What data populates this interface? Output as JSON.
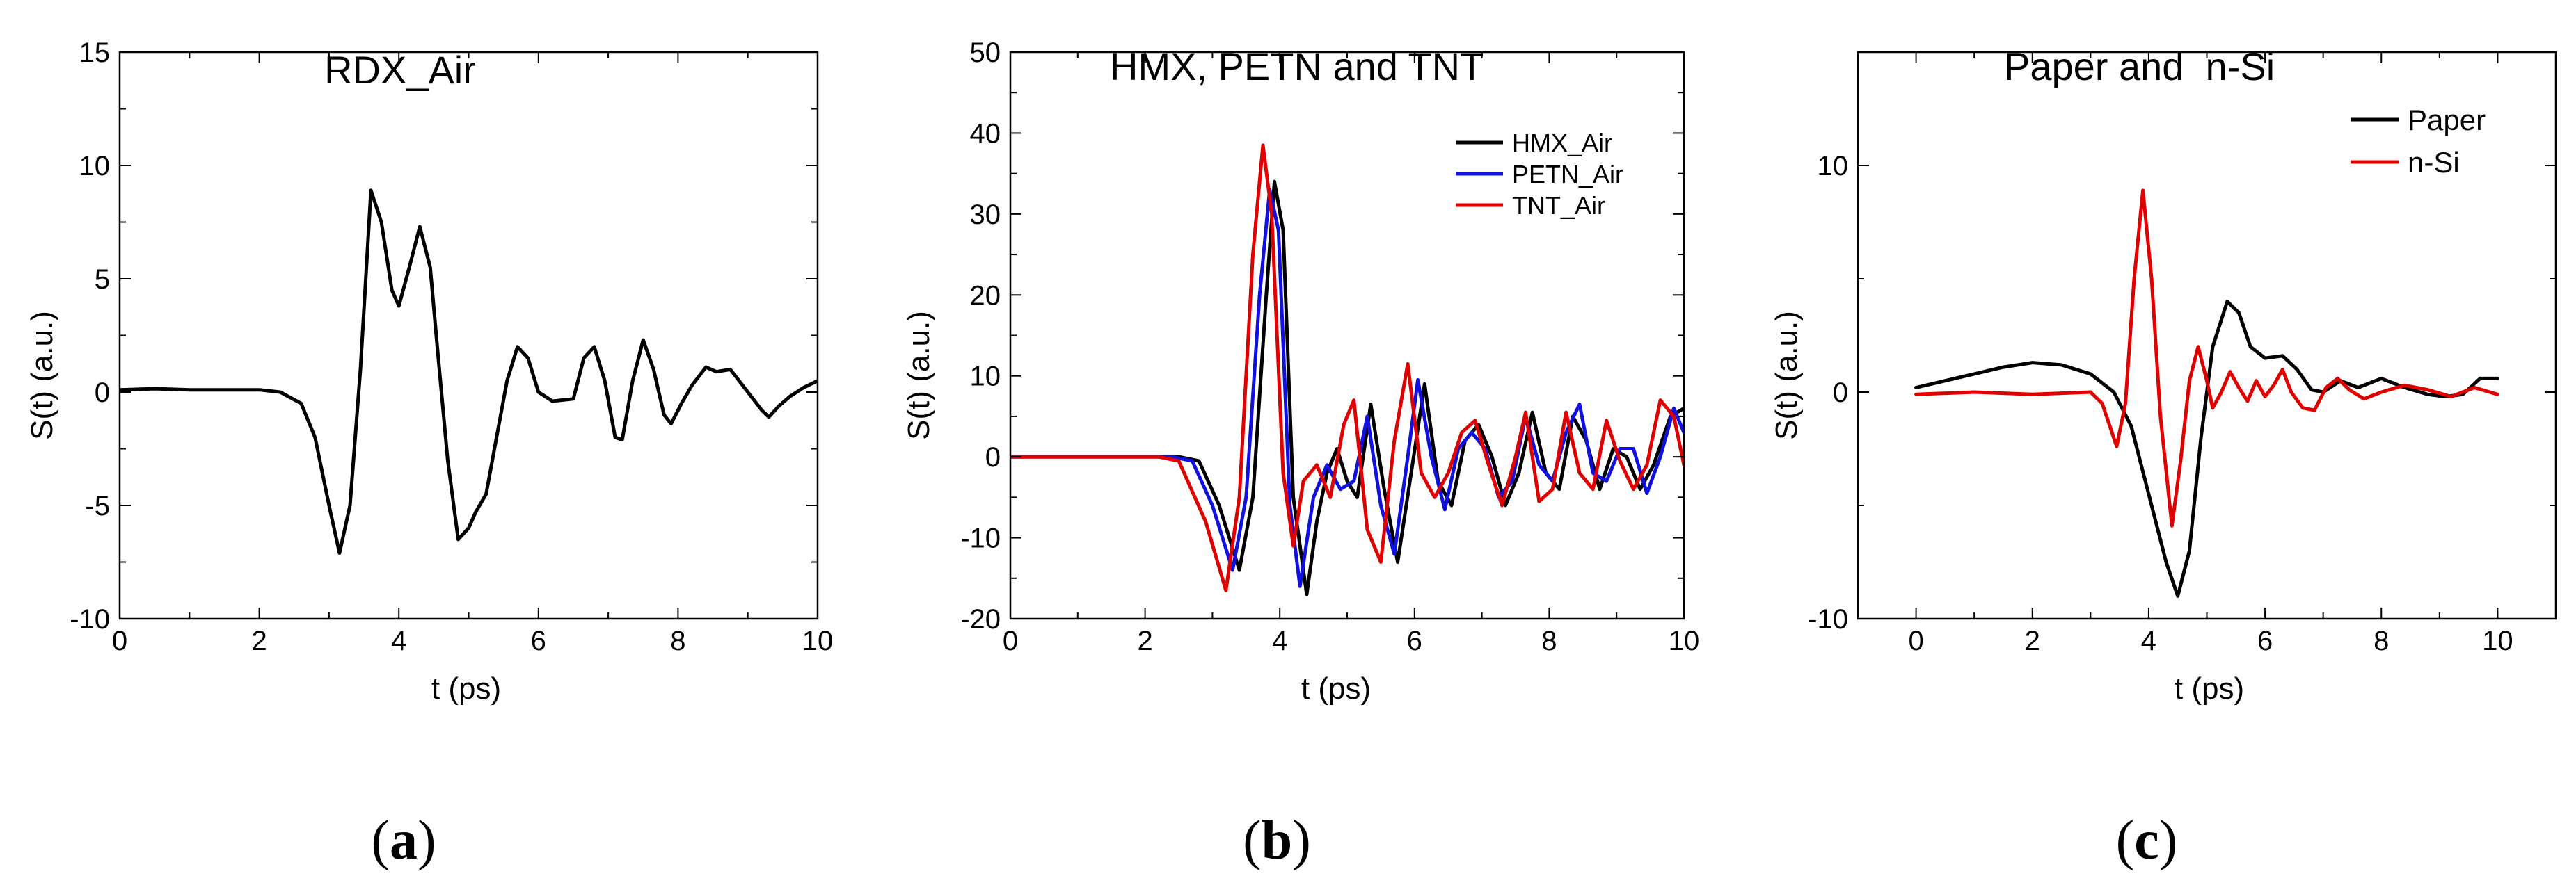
{
  "chart_data": [
    {
      "type": "line",
      "panel_label": {
        "open": "(",
        "letter": "a",
        "close": ")"
      },
      "title": "RDX_Air",
      "xlabel": "t (ps)",
      "ylabel": "S(t) (a.u.)",
      "xlim": [
        0,
        10
      ],
      "ylim": [
        -10,
        15
      ],
      "xticks": [
        0,
        2,
        4,
        6,
        8,
        10
      ],
      "xtick_labels": [
        "0",
        "2",
        "4",
        "6",
        "8",
        "10"
      ],
      "yticks": [
        -10,
        -5,
        0,
        5,
        10,
        15
      ],
      "ytick_labels": [
        "-10",
        "-5",
        "0",
        "5",
        "10",
        "15"
      ],
      "series": [
        {
          "name": "RDX_Air",
          "color": "#000000",
          "points": [
            [
              0,
              0.1
            ],
            [
              0.5,
              0.15
            ],
            [
              1.0,
              0.1
            ],
            [
              1.5,
              0.1
            ],
            [
              2.0,
              0.1
            ],
            [
              2.3,
              0.0
            ],
            [
              2.6,
              -0.5
            ],
            [
              2.8,
              -2.0
            ],
            [
              3.0,
              -5.0
            ],
            [
              3.15,
              -7.1
            ],
            [
              3.3,
              -5.0
            ],
            [
              3.45,
              1.0
            ],
            [
              3.6,
              8.9
            ],
            [
              3.75,
              7.5
            ],
            [
              3.9,
              4.5
            ],
            [
              4.0,
              3.8
            ],
            [
              4.15,
              5.5
            ],
            [
              4.3,
              7.3
            ],
            [
              4.45,
              5.5
            ],
            [
              4.55,
              2.0
            ],
            [
              4.7,
              -3.0
            ],
            [
              4.85,
              -6.5
            ],
            [
              5.0,
              -6.0
            ],
            [
              5.1,
              -5.3
            ],
            [
              5.25,
              -4.5
            ],
            [
              5.4,
              -2.0
            ],
            [
              5.55,
              0.5
            ],
            [
              5.7,
              2.0
            ],
            [
              5.85,
              1.5
            ],
            [
              6.0,
              0.0
            ],
            [
              6.2,
              -0.4
            ],
            [
              6.5,
              -0.3
            ],
            [
              6.65,
              1.5
            ],
            [
              6.8,
              2.0
            ],
            [
              6.95,
              0.5
            ],
            [
              7.1,
              -2.0
            ],
            [
              7.2,
              -2.1
            ],
            [
              7.35,
              0.5
            ],
            [
              7.5,
              2.3
            ],
            [
              7.65,
              1.0
            ],
            [
              7.8,
              -1.0
            ],
            [
              7.9,
              -1.4
            ],
            [
              8.05,
              -0.5
            ],
            [
              8.2,
              0.3
            ],
            [
              8.4,
              1.1
            ],
            [
              8.55,
              0.9
            ],
            [
              8.75,
              1.0
            ],
            [
              9.0,
              0.0
            ],
            [
              9.2,
              -0.8
            ],
            [
              9.3,
              -1.1
            ],
            [
              9.45,
              -0.6
            ],
            [
              9.6,
              -0.2
            ],
            [
              9.8,
              0.2
            ],
            [
              10.0,
              0.5
            ]
          ]
        }
      ]
    },
    {
      "type": "line",
      "panel_label": {
        "open": "(",
        "letter": "b",
        "close": ")"
      },
      "title": "HMX, PETN and TNT",
      "xlabel": "t (ps)",
      "ylabel": "S(t) (a.u.)",
      "xlim": [
        0,
        10
      ],
      "ylim": [
        -20,
        50
      ],
      "xticks": [
        0,
        2,
        4,
        6,
        8,
        10
      ],
      "xtick_labels": [
        "0",
        "2",
        "4",
        "6",
        "8",
        "10"
      ],
      "yticks": [
        -20,
        -10,
        0,
        10,
        20,
        30,
        40,
        50
      ],
      "ytick_labels": [
        "-20",
        "-10",
        "0",
        "10",
        "20",
        "30",
        "40",
        "50"
      ],
      "legend": {
        "position": "top-right",
        "entries": [
          "HMX_Air",
          "PETN_Air",
          "TNT_Air"
        ]
      },
      "series": [
        {
          "name": "HMX_Air",
          "color": "#000000",
          "points": [
            [
              0,
              0
            ],
            [
              2.5,
              0
            ],
            [
              2.8,
              -0.5
            ],
            [
              3.1,
              -6.0
            ],
            [
              3.4,
              -14.0
            ],
            [
              3.6,
              -5.0
            ],
            [
              3.8,
              20.0
            ],
            [
              3.92,
              34.0
            ],
            [
              4.05,
              28.0
            ],
            [
              4.2,
              -5.0
            ],
            [
              4.4,
              -17.0
            ],
            [
              4.55,
              -8.0
            ],
            [
              4.7,
              -2.0
            ],
            [
              4.85,
              1.0
            ],
            [
              5.0,
              -3.0
            ],
            [
              5.15,
              -5.0
            ],
            [
              5.35,
              6.5
            ],
            [
              5.55,
              -4.0
            ],
            [
              5.75,
              -13.0
            ],
            [
              5.95,
              -2.0
            ],
            [
              6.15,
              9.0
            ],
            [
              6.35,
              -3.0
            ],
            [
              6.55,
              -6.0
            ],
            [
              6.75,
              2.0
            ],
            [
              6.95,
              4.0
            ],
            [
              7.15,
              0.0
            ],
            [
              7.35,
              -6.0
            ],
            [
              7.55,
              -2.0
            ],
            [
              7.75,
              5.5
            ],
            [
              7.95,
              -2.0
            ],
            [
              8.15,
              -4.0
            ],
            [
              8.35,
              5.0
            ],
            [
              8.55,
              2.0
            ],
            [
              8.75,
              -4.0
            ],
            [
              8.95,
              1.0
            ],
            [
              9.15,
              0.0
            ],
            [
              9.35,
              -4.0
            ],
            [
              9.55,
              -1.0
            ],
            [
              9.8,
              5.0
            ],
            [
              10.0,
              6.0
            ]
          ]
        },
        {
          "name": "PETN_Air",
          "color": "#1010e0",
          "points": [
            [
              0,
              0
            ],
            [
              2.4,
              0
            ],
            [
              2.7,
              -0.5
            ],
            [
              3.0,
              -6.0
            ],
            [
              3.3,
              -14.0
            ],
            [
              3.5,
              -5.0
            ],
            [
              3.7,
              20.0
            ],
            [
              3.85,
              33.0
            ],
            [
              3.98,
              28.0
            ],
            [
              4.15,
              -6.0
            ],
            [
              4.3,
              -16.0
            ],
            [
              4.5,
              -5.0
            ],
            [
              4.7,
              -1.0
            ],
            [
              4.9,
              -4.0
            ],
            [
              5.1,
              -3.0
            ],
            [
              5.3,
              5.0
            ],
            [
              5.5,
              -6.0
            ],
            [
              5.7,
              -12.0
            ],
            [
              5.9,
              0.0
            ],
            [
              6.05,
              9.5
            ],
            [
              6.25,
              0.0
            ],
            [
              6.45,
              -6.5
            ],
            [
              6.65,
              1.0
            ],
            [
              6.85,
              3.0
            ],
            [
              7.05,
              1.0
            ],
            [
              7.25,
              -5.0
            ],
            [
              7.45,
              -3.0
            ],
            [
              7.65,
              5.0
            ],
            [
              7.85,
              -1.0
            ],
            [
              8.05,
              -3.0
            ],
            [
              8.25,
              3.0
            ],
            [
              8.45,
              6.5
            ],
            [
              8.65,
              -2.0
            ],
            [
              8.85,
              -3.0
            ],
            [
              9.05,
              1.0
            ],
            [
              9.25,
              1.0
            ],
            [
              9.45,
              -4.5
            ],
            [
              9.65,
              0.0
            ],
            [
              9.85,
              6.0
            ],
            [
              10.0,
              3.0
            ]
          ]
        },
        {
          "name": "TNT_Air",
          "color": "#e00000",
          "points": [
            [
              0,
              0
            ],
            [
              2.2,
              0
            ],
            [
              2.5,
              -0.5
            ],
            [
              2.9,
              -8.0
            ],
            [
              3.2,
              -16.5
            ],
            [
              3.4,
              -5.0
            ],
            [
              3.6,
              25.0
            ],
            [
              3.75,
              38.5
            ],
            [
              3.88,
              30.0
            ],
            [
              4.05,
              -2.0
            ],
            [
              4.2,
              -11.0
            ],
            [
              4.35,
              -3.0
            ],
            [
              4.55,
              -1.0
            ],
            [
              4.75,
              -5.0
            ],
            [
              4.95,
              4.0
            ],
            [
              5.1,
              7.0
            ],
            [
              5.3,
              -9.0
            ],
            [
              5.5,
              -13.0
            ],
            [
              5.7,
              2.0
            ],
            [
              5.9,
              11.5
            ],
            [
              6.1,
              -2.0
            ],
            [
              6.3,
              -5.0
            ],
            [
              6.5,
              -2.0
            ],
            [
              6.7,
              3.0
            ],
            [
              6.9,
              4.5
            ],
            [
              7.1,
              -1.0
            ],
            [
              7.3,
              -6.0
            ],
            [
              7.5,
              0.0
            ],
            [
              7.65,
              5.5
            ],
            [
              7.85,
              -5.5
            ],
            [
              8.05,
              -4.0
            ],
            [
              8.25,
              5.5
            ],
            [
              8.45,
              -2.0
            ],
            [
              8.65,
              -4.0
            ],
            [
              8.85,
              4.5
            ],
            [
              9.05,
              -0.5
            ],
            [
              9.25,
              -4.0
            ],
            [
              9.45,
              -1.0
            ],
            [
              9.65,
              7.0
            ],
            [
              9.85,
              5.0
            ],
            [
              10.0,
              -1.0
            ]
          ]
        }
      ]
    },
    {
      "type": "line",
      "panel_label": {
        "open": "(",
        "letter": "c",
        "close": ")"
      },
      "title": "Paper and  n-Si",
      "xlabel": "t (ps)",
      "ylabel": "S(t) (a.u.)",
      "xlim": [
        -1,
        11
      ],
      "ylim": [
        -10,
        15
      ],
      "xticks": [
        0,
        2,
        4,
        6,
        8,
        10
      ],
      "xtick_labels": [
        "0",
        "2",
        "4",
        "6",
        "8",
        "10"
      ],
      "yticks": [
        -10,
        0,
        10
      ],
      "ytick_labels": [
        "-10",
        "0",
        "10"
      ],
      "legend": {
        "position": "top-right",
        "entries": [
          "Paper",
          "n-Si"
        ]
      },
      "series": [
        {
          "name": "Paper",
          "color": "#000000",
          "points": [
            [
              0,
              0.2
            ],
            [
              0.5,
              0.5
            ],
            [
              1.0,
              0.8
            ],
            [
              1.5,
              1.1
            ],
            [
              2.0,
              1.3
            ],
            [
              2.5,
              1.2
            ],
            [
              3.0,
              0.8
            ],
            [
              3.4,
              0.0
            ],
            [
              3.7,
              -1.5
            ],
            [
              4.0,
              -4.5
            ],
            [
              4.3,
              -7.5
            ],
            [
              4.5,
              -9.0
            ],
            [
              4.7,
              -7.0
            ],
            [
              4.9,
              -2.0
            ],
            [
              5.1,
              2.0
            ],
            [
              5.35,
              4.0
            ],
            [
              5.55,
              3.5
            ],
            [
              5.75,
              2.0
            ],
            [
              6.0,
              1.5
            ],
            [
              6.3,
              1.6
            ],
            [
              6.55,
              1.0
            ],
            [
              6.8,
              0.1
            ],
            [
              7.0,
              0.0
            ],
            [
              7.3,
              0.5
            ],
            [
              7.6,
              0.2
            ],
            [
              8.0,
              0.6
            ],
            [
              8.4,
              0.2
            ],
            [
              8.8,
              -0.1
            ],
            [
              9.1,
              -0.2
            ],
            [
              9.4,
              -0.1
            ],
            [
              9.7,
              0.6
            ],
            [
              10.0,
              0.6
            ]
          ]
        },
        {
          "name": "n-Si",
          "color": "#e00000",
          "points": [
            [
              0,
              -0.1
            ],
            [
              1.0,
              0.0
            ],
            [
              2.0,
              -0.1
            ],
            [
              3.0,
              0.0
            ],
            [
              3.2,
              -0.5
            ],
            [
              3.45,
              -2.4
            ],
            [
              3.6,
              -0.5
            ],
            [
              3.75,
              5.0
            ],
            [
              3.9,
              8.9
            ],
            [
              4.05,
              5.0
            ],
            [
              4.2,
              -1.0
            ],
            [
              4.4,
              -5.9
            ],
            [
              4.55,
              -3.0
            ],
            [
              4.7,
              0.5
            ],
            [
              4.85,
              2.0
            ],
            [
              5.0,
              0.5
            ],
            [
              5.1,
              -0.7
            ],
            [
              5.25,
              0.0
            ],
            [
              5.4,
              0.9
            ],
            [
              5.55,
              0.2
            ],
            [
              5.7,
              -0.4
            ],
            [
              5.85,
              0.5
            ],
            [
              6.0,
              -0.2
            ],
            [
              6.15,
              0.3
            ],
            [
              6.3,
              1.0
            ],
            [
              6.45,
              0.0
            ],
            [
              6.65,
              -0.7
            ],
            [
              6.85,
              -0.8
            ],
            [
              7.05,
              0.2
            ],
            [
              7.25,
              0.6
            ],
            [
              7.45,
              0.1
            ],
            [
              7.7,
              -0.3
            ],
            [
              8.0,
              0.0
            ],
            [
              8.4,
              0.3
            ],
            [
              8.8,
              0.1
            ],
            [
              9.2,
              -0.2
            ],
            [
              9.6,
              0.2
            ],
            [
              10.0,
              -0.1
            ]
          ]
        }
      ]
    }
  ]
}
